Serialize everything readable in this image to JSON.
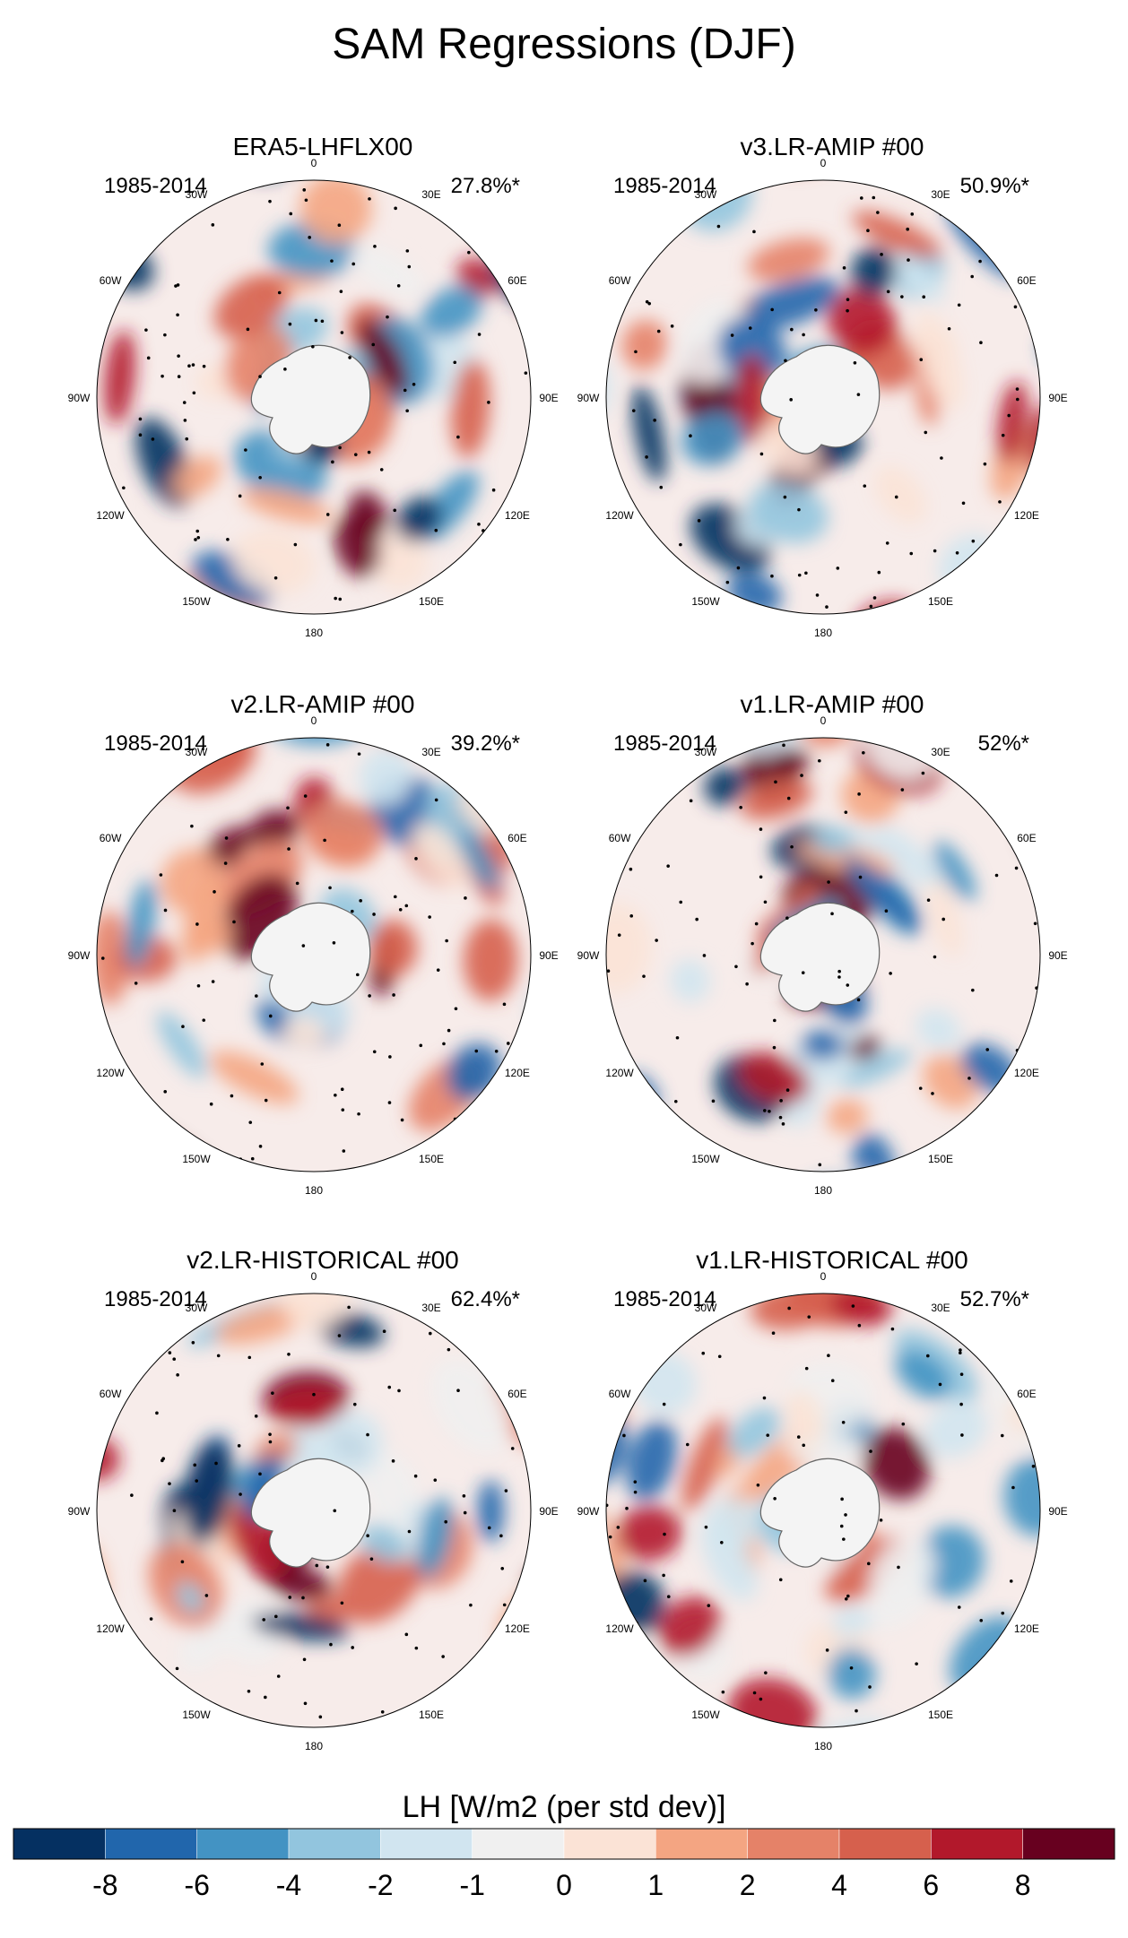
{
  "title": "SAM Regressions (DJF)",
  "longitude_labels": [
    "0",
    "30E",
    "60E",
    "90E",
    "120E",
    "150E",
    "180",
    "150W",
    "120W",
    "90W",
    "60W",
    "30W"
  ],
  "panels": [
    {
      "title": "ERA5-LHFLX00",
      "period": "1985-2014",
      "stat": "27.8%*"
    },
    {
      "title": "v3.LR-AMIP  #00",
      "period": "1985-2014",
      "stat": "50.9%*"
    },
    {
      "title": "v2.LR-AMIP  #00",
      "period": "1985-2014",
      "stat": "39.2%*"
    },
    {
      "title": "v1.LR-AMIP  #00",
      "period": "1985-2014",
      "stat": "52%*"
    },
    {
      "title": "v2.LR-HISTORICAL  #00",
      "period": "1985-2014",
      "stat": "62.4%*"
    },
    {
      "title": "v1.LR-HISTORICAL  #00",
      "period": "1985-2014",
      "stat": "52.7%*"
    }
  ],
  "colorbar": {
    "title": "LH [W/m2 (per std dev)]",
    "colors": [
      "#053061",
      "#2166ac",
      "#4393c3",
      "#92c5de",
      "#d1e5f0",
      "#f0f0f0",
      "#fbe3d6",
      "#f4a582",
      "#e58268",
      "#d6604d",
      "#b2182b",
      "#67001f"
    ],
    "tick_labels": [
      "-8",
      "-6",
      "-4",
      "-2",
      "-1",
      "0",
      "1",
      "2",
      "4",
      "6",
      "8"
    ]
  }
}
